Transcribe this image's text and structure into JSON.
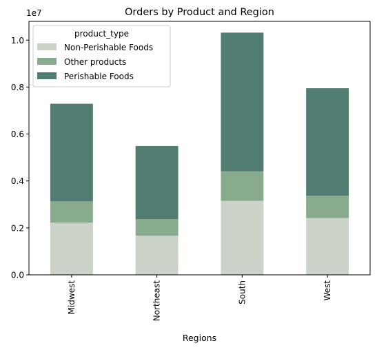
{
  "chart_data": {
    "type": "bar",
    "stacked": true,
    "title": "Orders by Product and Region",
    "xlabel": "Regions",
    "ylabel": "",
    "y_offset_text": "1e7",
    "categories": [
      "Midwest",
      "Northeast",
      "South",
      "West"
    ],
    "ylim": [
      0,
      1.08
    ],
    "yticks": [
      0.0,
      0.2,
      0.4,
      0.6,
      0.8,
      1.0
    ],
    "ytick_labels": [
      "0.0",
      "0.2",
      "0.4",
      "0.6",
      "0.8",
      "1.0"
    ],
    "series": [
      {
        "name": "Non-Perishable Foods",
        "color": "#cbd3c8",
        "values": [
          0.222,
          0.167,
          0.315,
          0.242
        ]
      },
      {
        "name": "Other products",
        "color": "#88ab8e",
        "values": [
          0.091,
          0.07,
          0.126,
          0.095
        ]
      },
      {
        "name": "Perishable Foods",
        "color": "#517c71",
        "values": [
          0.416,
          0.312,
          0.591,
          0.458
        ]
      }
    ],
    "legend": {
      "title": "product_type",
      "placement": "top-left"
    },
    "grid": false
  }
}
